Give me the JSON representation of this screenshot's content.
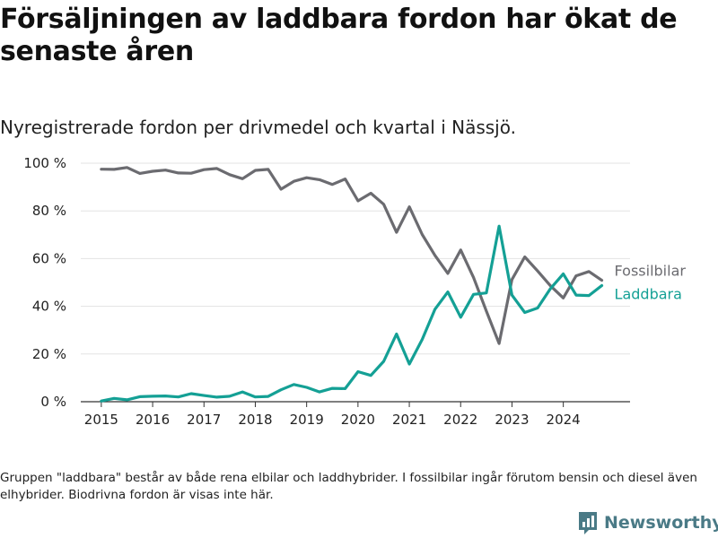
{
  "header": {
    "title": "Försäljningen av laddbara fordon har ökat de senaste åren",
    "subtitle": "Nyregistrerade fordon per drivmedel och kvartal i Nässjö."
  },
  "footer": {
    "note": "Gruppen \"laddbara\" består av både rena elbilar och laddhybrider. I fossilbilar ingår förutom bensin och diesel även elhybrider. Biodrivna fordon är visas inte här.",
    "brand": "Newsworthy"
  },
  "colors": {
    "fossil": "#6b6b70",
    "laddbara": "#14a095",
    "grid": "#e3e3e3",
    "axis": "#333333",
    "brand": "#4a7a86"
  },
  "chart_data": {
    "type": "line",
    "title": "Försäljningen av laddbara fordon har ökat de senaste åren",
    "subtitle": "Nyregistrerade fordon per drivmedel och kvartal i Nässjö.",
    "xlabel": "",
    "ylabel": "",
    "x_start": 2015.0,
    "x_step": 0.25,
    "xlim": [
      2014.6,
      2025.3
    ],
    "ylim": [
      0,
      100
    ],
    "x_ticks": [
      2015,
      2016,
      2017,
      2018,
      2019,
      2020,
      2021,
      2022,
      2023,
      2024
    ],
    "x_tick_labels": [
      "2015",
      "2016",
      "2017",
      "2018",
      "2019",
      "2020",
      "2021",
      "2022",
      "2023",
      "2024"
    ],
    "y_ticks": [
      0,
      20,
      40,
      60,
      80,
      100
    ],
    "y_tick_labels": [
      "0 %",
      "20 %",
      "40 %",
      "60 %",
      "80 %",
      "100 %"
    ],
    "grid": true,
    "legend": "inline labels at line ends (right)",
    "series": [
      {
        "name": "Fossilbilar",
        "key": "fossil",
        "values": [
          97.5,
          97.4,
          98.2,
          95.7,
          96.6,
          97.1,
          95.9,
          95.8,
          97.3,
          97.8,
          95.2,
          93.5,
          97.0,
          97.4,
          89.1,
          92.4,
          93.9,
          93.1,
          91.1,
          93.4,
          84.2,
          87.4,
          82.8,
          71.0,
          81.7,
          70.1,
          61.3,
          53.8,
          63.6,
          52.1,
          38.0,
          24.4,
          51.2,
          60.7,
          54.8,
          48.6,
          43.5,
          52.8,
          54.6,
          50.9
        ]
      },
      {
        "name": "Laddbara",
        "key": "laddbara",
        "values": [
          0.3,
          1.4,
          0.8,
          2.1,
          2.3,
          2.4,
          2.0,
          3.4,
          2.6,
          1.9,
          2.3,
          4.1,
          2.0,
          2.2,
          5.0,
          7.2,
          6.0,
          4.1,
          5.6,
          5.5,
          12.6,
          11.0,
          16.9,
          28.4,
          15.8,
          26.1,
          38.8,
          46.0,
          35.4,
          45.0,
          45.6,
          73.6,
          44.7,
          37.4,
          39.3,
          47.4,
          53.6,
          44.7,
          44.5,
          48.7
        ]
      }
    ]
  }
}
